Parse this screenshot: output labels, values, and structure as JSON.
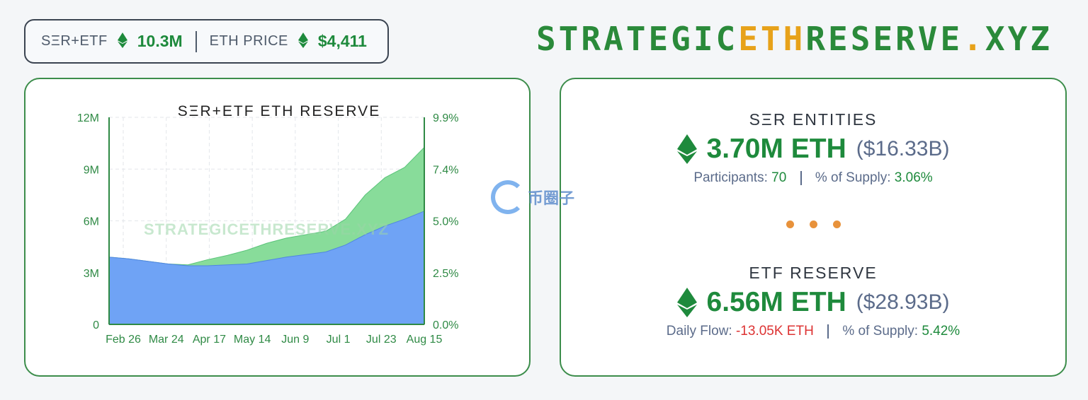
{
  "header": {
    "reserve_label": "SΞR+ETF",
    "reserve_value": "10.3M",
    "price_label": "ETH PRICE",
    "price_value": "$4,411"
  },
  "brand": {
    "part1": "STRATEGIC",
    "part2": "ETH",
    "part3": "RESERVE",
    "dot": ".",
    "part4": "XYZ"
  },
  "watermark": {
    "logo_text": "币圈子"
  },
  "chart_data": {
    "type": "area",
    "title": "SΞR+ETF ETH RESERVE",
    "watermark": "STRATEGICETHRESERVE.XYZ",
    "x_tick_labels": [
      "Feb 26",
      "Mar 24",
      "Apr 17",
      "May 14",
      "Jun 9",
      "Jul 1",
      "Jul 23",
      "Aug 15"
    ],
    "y_left_ticks": [
      "0",
      "3M",
      "6M",
      "9M",
      "12M"
    ],
    "y_right_ticks": [
      "0.0%",
      "2.5%",
      "5.0%",
      "7.4%",
      "9.9%"
    ],
    "ylim": [
      0,
      12000000
    ],
    "x": [
      "Feb 14",
      "Feb 26",
      "Mar 10",
      "Mar 24",
      "Apr 5",
      "Apr 17",
      "Apr 30",
      "May 14",
      "May 27",
      "Jun 9",
      "Jun 20",
      "Jul 1",
      "Jul 12",
      "Jul 23",
      "Aug 3",
      "Aug 10",
      "Aug 15"
    ],
    "series": [
      {
        "name": "ETF",
        "color": "#6fa3f5",
        "values": [
          3900000,
          3800000,
          3650000,
          3500000,
          3400000,
          3400000,
          3450000,
          3500000,
          3700000,
          3900000,
          4050000,
          4200000,
          4600000,
          5200000,
          5700000,
          6100000,
          6560000
        ]
      },
      {
        "name": "SER",
        "color": "#88dc9a",
        "values": [
          0,
          0,
          0,
          0,
          50000,
          350000,
          550000,
          800000,
          1000000,
          1100000,
          1150000,
          1200000,
          1500000,
          2300000,
          2800000,
          3000000,
          3700000
        ]
      }
    ]
  },
  "ser": {
    "title": "SΞR ENTITIES",
    "amount": "3.70M ETH",
    "usd": "($16.33B)",
    "stat1_label": "Participants:",
    "stat1_value": "70",
    "stat2_label": "% of Supply:",
    "stat2_value": "3.06%"
  },
  "etf": {
    "title": "ETF RESERVE",
    "amount": "6.56M ETH",
    "usd": "($28.93B)",
    "stat1_label": "Daily Flow:",
    "stat1_value": "-13.05K ETH",
    "stat2_label": "% of Supply:",
    "stat2_value": "5.42%"
  },
  "colors": {
    "green": "#1e8a3c",
    "accent_orange": "#e7a21a",
    "etf_blue": "#6fa3f5",
    "ser_green": "#88dc9a",
    "negative": "#dd3333"
  }
}
